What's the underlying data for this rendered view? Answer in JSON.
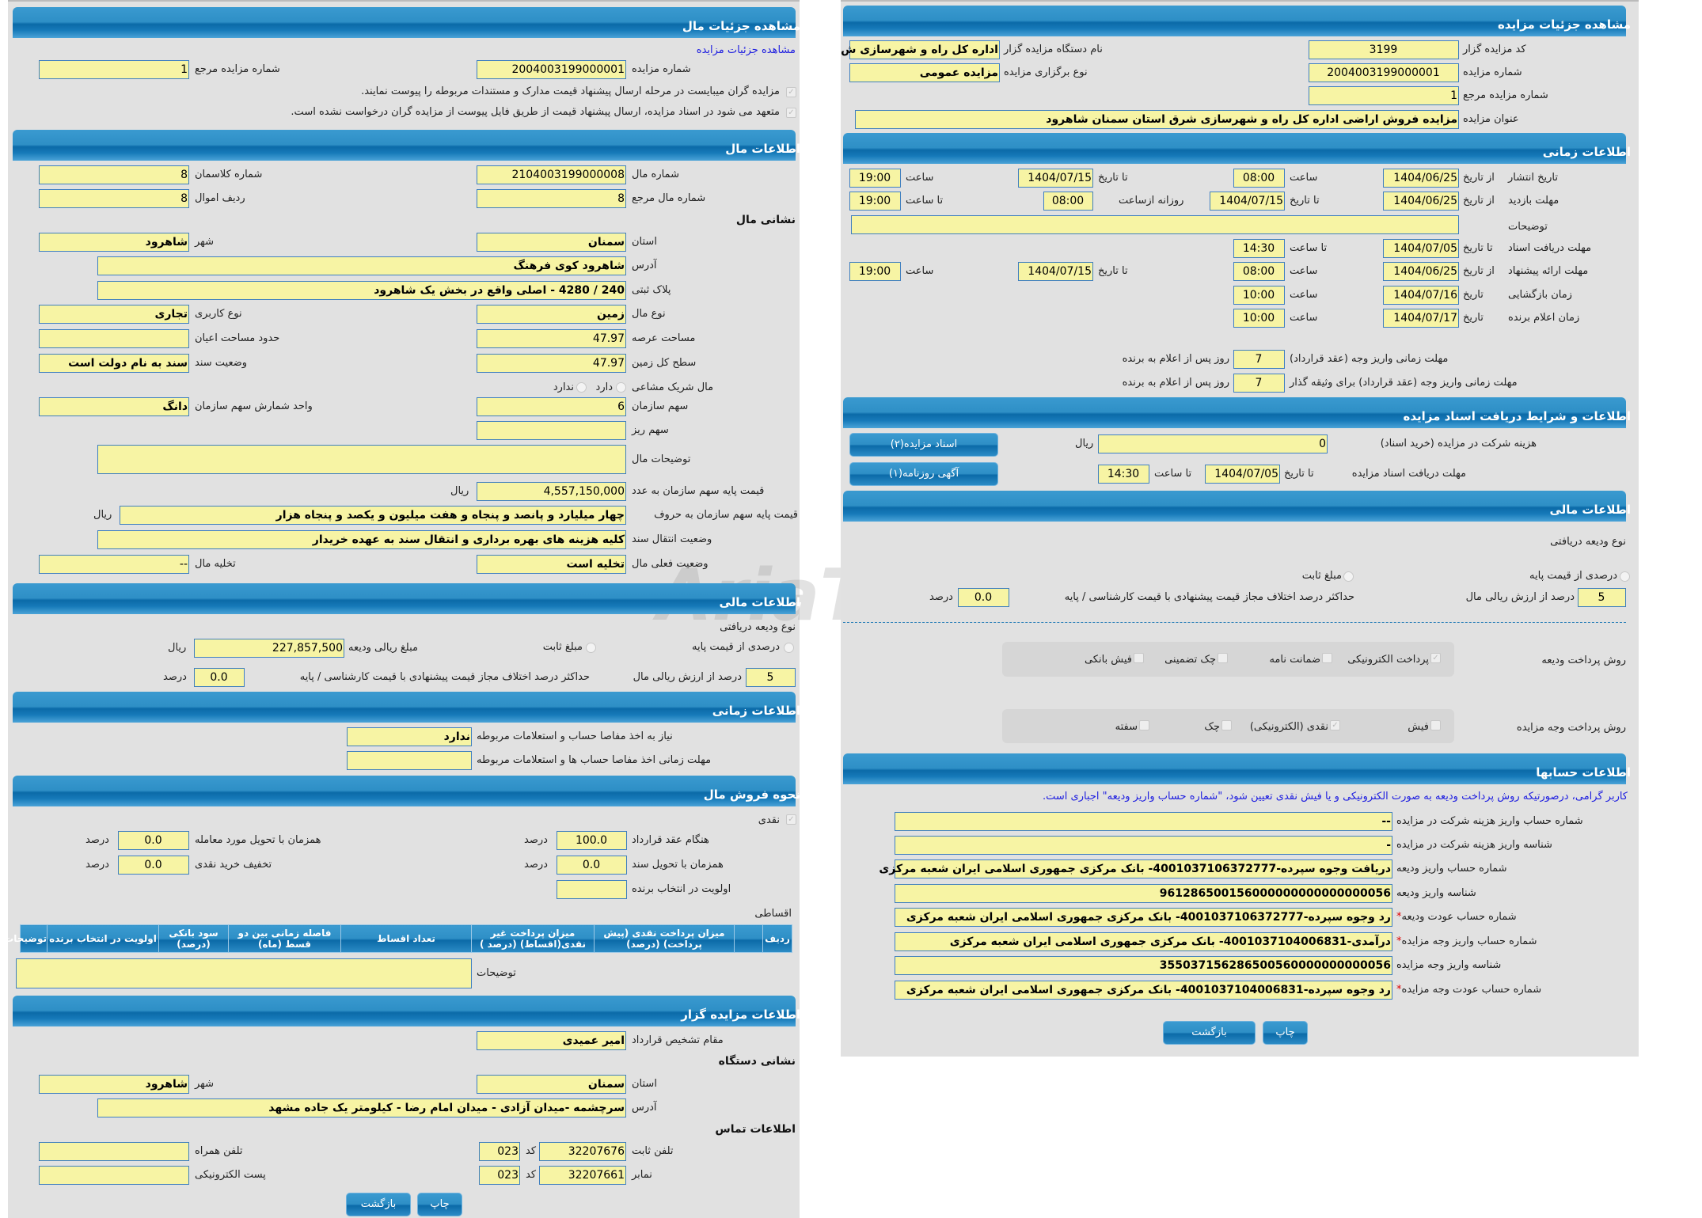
{
  "watermark": "AriaTender.net",
  "left": {
    "title": "مشاهده جزئیات مال",
    "link": "مشاهده جزئیات مزایده",
    "auction_no_label": "شماره مزایده",
    "auction_no": "2004003199000001",
    "ref_label": "شماره مزایده مرجع",
    "ref": "1",
    "check1": "مزایده گران میبایست در مرحله ارسال پیشنهاد قیمت مدارک و مستندات مربوطه را پیوست نمایند.",
    "check2": "متعهد می شود در اسناد مزایده، ارسال پیشنهاد قیمت از طریق فایل پیوست از مزایده گران درخواست نشده است.",
    "asset": {
      "title": "اطلاعات مال",
      "asset_no_label": "شماره مال",
      "asset_no": "2104003199000008",
      "class_label": "شماره کلاسمان",
      "class": "8",
      "asset_ref_label": "شماره مال مرجع",
      "asset_ref": "8",
      "row_label": "ردیف اموال",
      "row": "8",
      "address_title": "نشانی مال",
      "province_label": "استان",
      "province": "سمنان",
      "city_label": "شهر",
      "city": "شاهرود",
      "address_label": "آدرس",
      "address": "شاهرود کوی فرهنگ",
      "plaque_label": "پلاک ثبتی",
      "plaque": "240 / 4280 - اصلی واقع در بخش یک شاهرود",
      "type_label": "نوع مال",
      "type": "زمین",
      "usage_label": "نوع کاربری",
      "usage": "تجاری",
      "area_label": "مساحت عرصه",
      "area": "47.97",
      "building_label": "حدود مساحت اعیان",
      "building": "",
      "total_label": "سطح کل زمین",
      "total": "47.97",
      "deed_label": "وضعیت سند",
      "deed": "سند به نام دولت است",
      "shared_label": "مال شریک مشاعی",
      "shared_yes": "دارد",
      "shared_no": "ندارد",
      "share_label": "سهم سازمان",
      "share": "6",
      "unit_label": "واحد شمارش سهم سازمان",
      "unit": "دانگ",
      "subshare_label": "سهم ریز",
      "subshare": "",
      "desc_label": "توضیحات مال",
      "desc": "",
      "price_num_label": "قیمت پایه سهم سازمان به عدد",
      "price_num": "4,557,150,000",
      "rial": "ریال",
      "price_txt_label": "قیمت پایه سهم سازمان به حروف",
      "price_txt": "چهار میلیارد و پانصد و پنجاه و هفت میلیون و یکصد و پنجاه هزار",
      "transfer_label": "وضعیت انتقال سند",
      "transfer": "کلیه هزینه های بهره برداری و انتقال سند به عهده خریدار",
      "status_label": "وضعیت فعلی مال",
      "status": "تخلیه است",
      "evac_label": "تخلیه مال",
      "evac": "--"
    },
    "finance": {
      "title": "اطلاعات مالی",
      "deposit_type": "نوع ودیعه دریافتی",
      "opt_percent": "درصدی از قیمت پایه",
      "opt_fixed": "مبلغ ثابت",
      "deposit_amount_label": "مبلغ ریالی ودیعه",
      "deposit_amount": "227,857,500",
      "rial": "ریال",
      "percent": "5",
      "percent_label": "درصد از ارزش ریالی مال",
      "max_diff_label": "حداکثر درصد اختلاف مجاز قیمت پیشنهادی با قیمت کارشناسی / پایه",
      "max_diff": "0.0",
      "percent_unit": "درصد"
    },
    "time": {
      "title": "اطلاعات زمانی",
      "clearance_label": "نیاز به اخذ مفاصا حساب و استعلامات مربوطه",
      "clearance": "ندارد",
      "clearance_deadline_label": "مهلت زمانی اخذ مفاصا حساب ها و استعلامات مربوطه",
      "clearance_deadline": ""
    },
    "sale": {
      "title": "نحوه فروش مال",
      "cash": "نقدی",
      "contract_label": "هنگام عقد قرارداد",
      "contract": "100.0",
      "delivery_label": "همزمان با تحویل مورد معامله",
      "delivery": "0.0",
      "deed_label": "همزمان با تحویل سند",
      "deed": "0.0",
      "discount_label": "تخفیف خرید نقدی",
      "discount": "0.0",
      "priority_label": "اولویت در انتخاب برنده",
      "priority": "",
      "unit": "درصد",
      "installments": "اقساطی",
      "table_headers": [
        "ردیف",
        "",
        "میزان پرداخت نقدی (پیش پرداخت) (درصد)",
        "میزان پرداخت غیر نقدی(اقساط) (درصد )",
        "تعداد اقساط",
        "فاصله زمانی بین دو قسط (ماه)",
        "سود بانکی (درصد)",
        "اولویت در انتخاب برنده",
        "توضیحات"
      ],
      "notes_label": "توضیحات",
      "notes": ""
    },
    "auctioneer": {
      "title": "اطلاعات مزایده گزار",
      "authority_label": "مقام تشخیص قرارداد",
      "authority": "امیر عمیدی",
      "address_title": "نشانی دستگاه",
      "province_label": "استان",
      "province": "سمنان",
      "city_label": "شهر",
      "city": "شاهرود",
      "address_label": "آدرس",
      "address": "سرچشمه -میدان آزادی -  میدان امام رضا - کیلومتر یک جاده مشهد",
      "contact_title": "اطلاعات تماس",
      "phone_label": "تلفن ثابت",
      "phone": "32207676",
      "code_label": "کد",
      "phone_code": "023",
      "mobile_label": "تلفن همراه",
      "mobile": "",
      "fax_label": "نمابر",
      "fax": "32207661",
      "fax_code": "023",
      "email_label": "پست الکترونیکی",
      "email": ""
    },
    "back": "بازگشت",
    "print": "چاپ"
  },
  "right": {
    "title": "مشاهده جزئیات مزایده",
    "code_label": "کد مزایده گزار",
    "code": "3199",
    "org_label": "نام دستگاه مزایده گزار",
    "org": "اداره کل راه و شهرسازی ش",
    "no_label": "شماره مزایده",
    "no": "2004003199000001",
    "kind_label": "نوع برگزاری مزایده",
    "kind": "مزایده عمومی",
    "ref_label": "شماره مزایده مرجع",
    "ref": "1",
    "subject_label": "عنوان مزایده",
    "subject": "مزایده فروش اراضی اداره کل راه و شهرسازی شرق استان سمنان شاهرود",
    "time": {
      "title": "اطلاعات زمانی",
      "from_date": "از تاریخ",
      "to_date": "تا تاریخ",
      "date": "تاریخ",
      "hour": "ساعت",
      "to_hour": "تا ساعت",
      "daily_from": "روزانه ازساعت",
      "publish_label": "تاریخ انتشار",
      "publish_from": "1404/06/25",
      "publish_from_time": "08:00",
      "publish_to": "1404/07/15",
      "publish_to_time": "19:00",
      "visit_label": "مهلت بازدید",
      "visit_from": "1404/06/25",
      "visit_to": "1404/07/15",
      "visit_daily_from": "08:00",
      "visit_to_time": "19:00",
      "notes_label": "توضیحات",
      "notes": "",
      "docs_label": "مهلت دریافت اسناد",
      "docs_to": "1404/07/05",
      "docs_to_time": "14:30",
      "offer_label": "مهلت ارائه پیشنهاد",
      "offer_from": "1404/06/25",
      "offer_from_time": "08:00",
      "offer_to": "1404/07/15",
      "offer_to_time": "19:00",
      "opening_label": "زمان بازگشایی",
      "opening": "1404/07/16",
      "opening_time": "10:00",
      "winner_label": "زمان اعلام برنده",
      "winner": "1404/07/17",
      "winner_time": "10:00",
      "pay_label": "مهلت زمانی واریز وجه (عقد قرارداد)",
      "pay": "7",
      "pay_bail_label": "مهلت زمانی واریز وجه (عقد قرارداد) برای وثیقه گذار",
      "pay_bail": "7",
      "days_after": "روز پس از اعلام به برنده"
    },
    "docs": {
      "title": "اطلاعات و شرایط دریافت اسناد مزایده",
      "fee_label": "هزینه شرکت در مزایده (خرید اسناد)",
      "fee": "0",
      "rial": "ریال",
      "deadline_label": "مهلت دریافت اسناد مزایده",
      "to_date": "تا تاریخ",
      "deadline": "1404/07/05",
      "to_hour": "تا ساعت",
      "deadline_time": "14:30",
      "btn_docs": "اسناد مزایده(۲)",
      "btn_ad": "آگهی روزنامه(۱)"
    },
    "finance": {
      "title": "اطلاعات مالی",
      "deposit_type": "نوع ودیعه دریافتی",
      "opt_percent": "درصدی از قیمت پایه",
      "opt_fixed": "مبلغ ثابت",
      "percent": "5",
      "percent_label": "درصد از ارزش ریالی مال",
      "max_diff_label": "حداکثر درصد اختلاف مجاز قیمت پیشنهادی با قیمت کارشناسی / پایه",
      "max_diff": "0.0",
      "percent_unit": "درصد",
      "deposit_method_label": "روش پرداخت ودیعه",
      "deposit_methods": [
        {
          "label": "پرداخت الکترونیکی",
          "checked": true
        },
        {
          "label": "ضمانت نامه",
          "checked": false
        },
        {
          "label": "چک تضمینی",
          "checked": false
        },
        {
          "label": "فیش بانکی",
          "checked": false
        }
      ],
      "payment_method_label": "روش پرداخت وجه مزایده",
      "payment_methods": [
        {
          "label": "فیش",
          "checked": false
        },
        {
          "label": "نقدی (الکترونیکی)",
          "checked": true
        },
        {
          "label": "چک",
          "checked": false
        },
        {
          "label": "سفته",
          "checked": false
        }
      ]
    },
    "accounts": {
      "title": "اطلاعات حسابها",
      "notice": "کاربر گرامی، درصورتیکه روش پرداخت ودیعه به صورت الکترونیکی و یا فیش نقدی تعیین شود، \"شماره حساب واریز ودیعه\" اجباری است.",
      "rows": [
        {
          "label": "شماره حساب واریز هزینه شرکت در مزایده",
          "value": "--",
          "required": false
        },
        {
          "label": "شناسه واریز هزینه شرکت در مزایده",
          "value": "-",
          "required": false
        },
        {
          "label": "شماره حساب واریز ودیعه",
          "value": "دریافت وجوه سپرده-4001037106372777- بانک مرکزی جمهوری اسلامی ایران شعبه مرکزی",
          "required": false
        },
        {
          "label": "شناسه واریز ودیعه",
          "value": "961286500156000000000000000056",
          "required": false
        },
        {
          "label": "شماره حساب عودت ودیعه",
          "value": "رد وجوه سپرده-4001037106372777- بانک مرکزی جمهوری اسلامی ایران شعبه مرکزی",
          "required": true
        },
        {
          "label": "شماره حساب واریز وجه مزایده",
          "value": "درآمدی-4001037104006831- بانک مرکزی جمهوری اسلامی ایران شعبه مرکزی",
          "required": true
        },
        {
          "label": "شناسه واریز وجه مزایده",
          "value": "355037156286500560000000000056",
          "required": false
        },
        {
          "label": "شماره حساب عودت وجه مزایده",
          "value": "رد وجوه سپرده-4001037104006831- بانک مرکزی جمهوری اسلامی ایران شعبه مرکزی",
          "required": true
        }
      ]
    },
    "back": "بازگشت",
    "print": "چاپ"
  }
}
